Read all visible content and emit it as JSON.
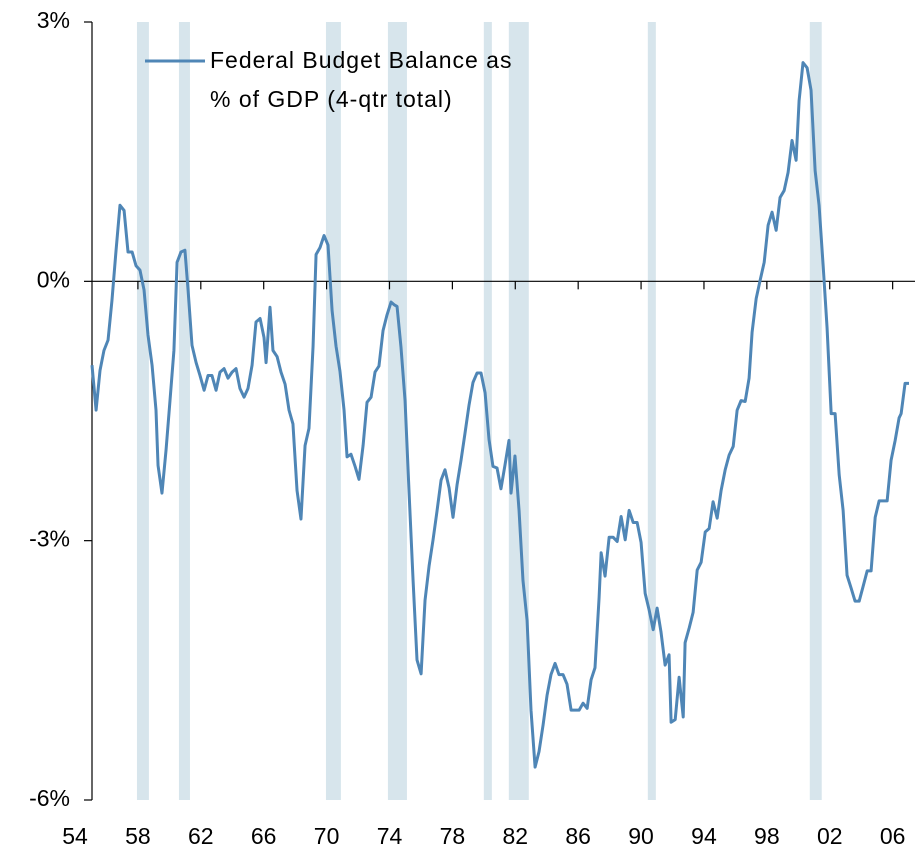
{
  "chart_data": {
    "type": "line",
    "series": [
      {
        "name": "Federal Budget Balance as % of GDP (4-qtr total)",
        "color": "#4f86b6",
        "x": [
          1955.08,
          1955.34,
          1955.59,
          1955.84,
          1956.1,
          1956.35,
          1956.61,
          1956.86,
          1957.12,
          1957.37,
          1957.63,
          1957.88,
          1958.13,
          1958.39,
          1958.64,
          1958.9,
          1959.15,
          1959.28,
          1959.53,
          1959.79,
          1960.04,
          1960.29,
          1960.49,
          1960.74,
          1960.99,
          1961.19,
          1961.44,
          1961.7,
          1961.95,
          1962.21,
          1962.46,
          1962.71,
          1962.97,
          1963.22,
          1963.48,
          1963.73,
          1963.99,
          1964.24,
          1964.49,
          1964.75,
          1965.0,
          1965.26,
          1965.51,
          1965.77,
          1966.02,
          1966.15,
          1966.4,
          1966.59,
          1966.85,
          1967.1,
          1967.36,
          1967.61,
          1967.86,
          1968.12,
          1968.37,
          1968.63,
          1968.88,
          1969.14,
          1969.33,
          1969.58,
          1969.84,
          1970.09,
          1970.35,
          1970.6,
          1970.85,
          1971.11,
          1971.3,
          1971.55,
          1971.81,
          1972.06,
          1972.32,
          1972.57,
          1972.83,
          1973.08,
          1973.33,
          1973.59,
          1973.84,
          1974.1,
          1974.29,
          1974.48,
          1974.73,
          1974.99,
          1975.24,
          1975.5,
          1975.75,
          1976.01,
          1976.26,
          1976.52,
          1976.77,
          1977.02,
          1977.28,
          1977.53,
          1977.79,
          1978.04,
          1978.3,
          1978.55,
          1978.8,
          1979.06,
          1979.31,
          1979.57,
          1979.82,
          1980.08,
          1980.33,
          1980.58,
          1980.84,
          1981.09,
          1981.35,
          1981.6,
          1981.73,
          1981.98,
          1982.24,
          1982.49,
          1982.75,
          1983.0,
          1983.26,
          1983.51,
          1983.77,
          1984.02,
          1984.27,
          1984.53,
          1984.78,
          1985.04,
          1985.29,
          1985.55,
          1985.8,
          1986.06,
          1986.31,
          1986.57,
          1986.82,
          1987.07,
          1987.33,
          1987.46,
          1987.71,
          1987.97,
          1988.22,
          1988.48,
          1988.73,
          1988.99,
          1989.24,
          1989.5,
          1989.75,
          1990.0,
          1990.26,
          1990.51,
          1990.77,
          1991.02,
          1991.27,
          1991.53,
          1991.78,
          1991.91,
          1992.17,
          1992.42,
          1992.68,
          1992.8,
          1993.06,
          1993.31,
          1993.57,
          1993.82,
          1994.08,
          1994.33,
          1994.58,
          1994.84,
          1995.09,
          1995.35,
          1995.6,
          1995.86,
          1996.11,
          1996.36,
          1996.62,
          1996.87,
          1997.06,
          1997.32,
          1997.57,
          1997.83,
          1998.08,
          1998.33,
          1998.59,
          1998.84,
          1999.1,
          1999.35,
          1999.6,
          1999.86,
          2000.05,
          2000.3,
          2000.56,
          2000.81,
          2001.07,
          2001.32,
          2001.58,
          2001.83,
          2002.09,
          2002.34,
          2002.6,
          2002.85,
          2003.1,
          2003.36,
          2003.61,
          2003.87,
          2004.12,
          2004.38,
          2004.63,
          2004.89,
          2005.14,
          2005.39,
          2005.65,
          2005.9,
          2006.16,
          2006.41,
          2006.54,
          2006.79,
          2007.04
        ],
        "values": [
          -0.97,
          -1.49,
          -1.03,
          -0.8,
          -0.68,
          -0.22,
          0.36,
          0.88,
          0.82,
          0.34,
          0.34,
          0.18,
          0.13,
          -0.1,
          -0.62,
          -0.97,
          -1.49,
          -2.13,
          -2.45,
          -1.95,
          -1.38,
          -0.8,
          0.22,
          0.34,
          0.36,
          -0.1,
          -0.74,
          -0.94,
          -1.09,
          -1.26,
          -1.09,
          -1.09,
          -1.26,
          -1.05,
          -1.01,
          -1.12,
          -1.05,
          -1.01,
          -1.24,
          -1.34,
          -1.24,
          -0.97,
          -0.47,
          -0.43,
          -0.65,
          -0.94,
          -0.3,
          -0.8,
          -0.87,
          -1.05,
          -1.19,
          -1.49,
          -1.65,
          -2.42,
          -2.75,
          -1.9,
          -1.7,
          -0.75,
          0.31,
          0.39,
          0.53,
          0.42,
          -0.34,
          -0.75,
          -1.04,
          -1.49,
          -2.03,
          -2.0,
          -2.14,
          -2.29,
          -1.9,
          -1.4,
          -1.34,
          -1.05,
          -0.98,
          -0.57,
          -0.39,
          -0.24,
          -0.27,
          -0.29,
          -0.76,
          -1.38,
          -2.42,
          -3.46,
          -4.38,
          -4.54,
          -3.69,
          -3.29,
          -2.99,
          -2.66,
          -2.3,
          -2.18,
          -2.39,
          -2.73,
          -2.35,
          -2.07,
          -1.76,
          -1.43,
          -1.17,
          -1.06,
          -1.06,
          -1.29,
          -1.83,
          -2.14,
          -2.16,
          -2.4,
          -2.12,
          -1.84,
          -2.45,
          -2.02,
          -2.65,
          -3.46,
          -3.92,
          -4.96,
          -5.62,
          -5.44,
          -5.13,
          -4.79,
          -4.55,
          -4.42,
          -4.55,
          -4.55,
          -4.66,
          -4.96,
          -4.96,
          -4.96,
          -4.88,
          -4.94,
          -4.61,
          -4.47,
          -3.66,
          -3.14,
          -3.41,
          -2.96,
          -2.96,
          -3.01,
          -2.72,
          -2.99,
          -2.65,
          -2.79,
          -2.79,
          -3.02,
          -3.61,
          -3.8,
          -4.03,
          -3.78,
          -4.06,
          -4.44,
          -4.32,
          -5.1,
          -5.07,
          -4.58,
          -5.04,
          -4.18,
          -4.01,
          -3.83,
          -3.34,
          -3.25,
          -2.9,
          -2.86,
          -2.55,
          -2.74,
          -2.42,
          -2.18,
          -2.01,
          -1.91,
          -1.49,
          -1.38,
          -1.39,
          -1.12,
          -0.59,
          -0.2,
          0.01,
          0.22,
          0.65,
          0.8,
          0.59,
          0.97,
          1.05,
          1.26,
          1.63,
          1.4,
          2.09,
          2.53,
          2.47,
          2.21,
          1.28,
          0.88,
          0.18,
          -0.54,
          -1.53,
          -1.53,
          -2.24,
          -2.65,
          -3.4,
          -3.55,
          -3.7,
          -3.7,
          -3.53,
          -3.35,
          -3.35,
          -2.73,
          -2.54,
          -2.54,
          -2.54,
          -2.07,
          -1.84,
          -1.58,
          -1.53,
          -1.18,
          -1.18
        ]
      }
    ],
    "shaded_periods": [
      [
        1957.94,
        1958.7
      ],
      [
        1960.61,
        1961.31
      ],
      [
        1969.96,
        1970.91
      ],
      [
        1973.9,
        1975.11
      ],
      [
        1980.0,
        1980.51
      ],
      [
        1981.59,
        1982.86
      ],
      [
        1990.43,
        1990.94
      ],
      [
        2000.73,
        2001.49
      ]
    ],
    "shade_color": "#d7e5ec",
    "xlim": [
      1955.08,
      2007.04
    ],
    "xticks": [
      {
        "value": 1954,
        "label": "54"
      },
      {
        "value": 1958,
        "label": "58"
      },
      {
        "value": 1962,
        "label": "62"
      },
      {
        "value": 1966,
        "label": "66"
      },
      {
        "value": 1970,
        "label": "70"
      },
      {
        "value": 1974,
        "label": "74"
      },
      {
        "value": 1978,
        "label": "78"
      },
      {
        "value": 1982,
        "label": "82"
      },
      {
        "value": 1986,
        "label": "86"
      },
      {
        "value": 1990,
        "label": "90"
      },
      {
        "value": 1994,
        "label": "94"
      },
      {
        "value": 1998,
        "label": "98"
      },
      {
        "value": 2002,
        "label": "02"
      },
      {
        "value": 2006,
        "label": "06"
      }
    ],
    "ylim": [
      -6,
      3
    ],
    "yticks": [
      {
        "value": 3,
        "label": "3%"
      },
      {
        "value": 0,
        "label": "0%"
      },
      {
        "value": -3,
        "label": "-3%"
      },
      {
        "value": -6,
        "label": "-6%"
      }
    ]
  }
}
